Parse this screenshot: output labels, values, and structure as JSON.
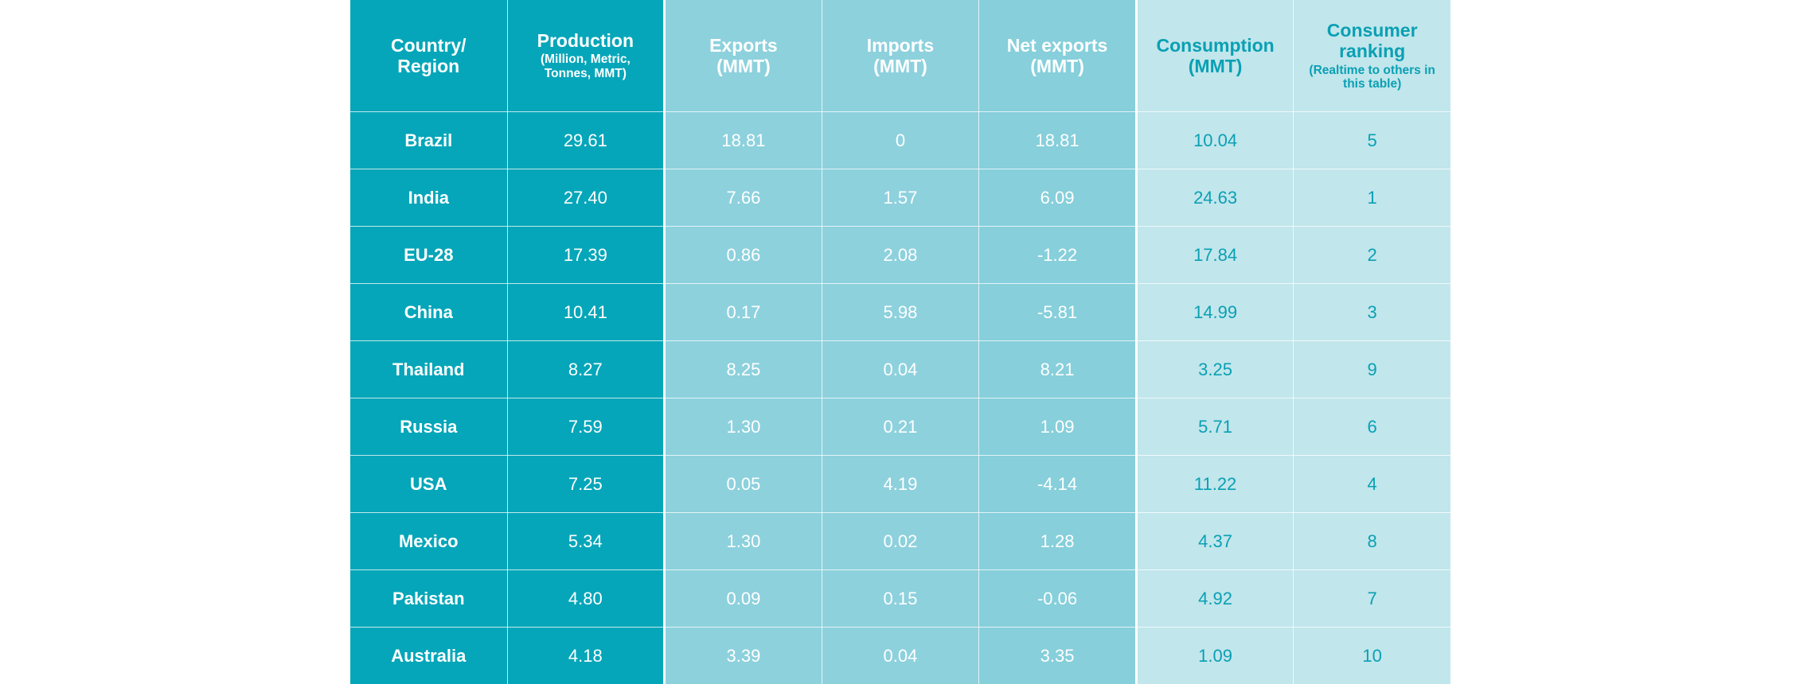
{
  "chart_data": {
    "type": "table",
    "columns": [
      {
        "title": "Country/\nRegion",
        "sub": ""
      },
      {
        "title": "Production",
        "sub": "(Million, Metric, Tonnes, MMT)"
      },
      {
        "title": "Exports",
        "sub": "(MMT)"
      },
      {
        "title": "Imports",
        "sub": "(MMT)"
      },
      {
        "title": "Net exports",
        "sub": "(MMT)"
      },
      {
        "title": "Consumption",
        "sub": "(MMT)"
      },
      {
        "title": "Consumer ranking",
        "sub": "(Realtime to others in this table)"
      }
    ],
    "rows": [
      {
        "country": "Brazil",
        "production": "29.61",
        "exports": "18.81",
        "imports": "0",
        "net_exports": "18.81",
        "consumption": "10.04",
        "ranking": "5"
      },
      {
        "country": "India",
        "production": "27.40",
        "exports": "7.66",
        "imports": "1.57",
        "net_exports": "6.09",
        "consumption": "24.63",
        "ranking": "1"
      },
      {
        "country": "EU-28",
        "production": "17.39",
        "exports": "0.86",
        "imports": "2.08",
        "net_exports": "-1.22",
        "consumption": "17.84",
        "ranking": "2"
      },
      {
        "country": "China",
        "production": "10.41",
        "exports": "0.17",
        "imports": "5.98",
        "net_exports": "-5.81",
        "consumption": "14.99",
        "ranking": "3"
      },
      {
        "country": "Thailand",
        "production": "8.27",
        "exports": "8.25",
        "imports": "0.04",
        "net_exports": "8.21",
        "consumption": "3.25",
        "ranking": "9"
      },
      {
        "country": "Russia",
        "production": "7.59",
        "exports": "1.30",
        "imports": "0.21",
        "net_exports": "1.09",
        "consumption": "5.71",
        "ranking": "6"
      },
      {
        "country": "USA",
        "production": "7.25",
        "exports": "0.05",
        "imports": "4.19",
        "net_exports": "-4.14",
        "consumption": "11.22",
        "ranking": "4"
      },
      {
        "country": "Mexico",
        "production": "5.34",
        "exports": "1.30",
        "imports": "0.02",
        "net_exports": "1.28",
        "consumption": "4.37",
        "ranking": "8"
      },
      {
        "country": "Pakistan",
        "production": "4.80",
        "exports": "0.09",
        "imports": "0.15",
        "net_exports": "-0.06",
        "consumption": "4.92",
        "ranking": "7"
      },
      {
        "country": "Australia",
        "production": "4.18",
        "exports": "3.39",
        "imports": "0.04",
        "net_exports": "3.35",
        "consumption": "1.09",
        "ranking": "10"
      }
    ],
    "colors": {
      "dark": "#05a6b9",
      "mid": "#8dd1dd",
      "net": "#86cfdb",
      "light": "#c1e6ec",
      "light_text": "#0aa0b3"
    }
  }
}
